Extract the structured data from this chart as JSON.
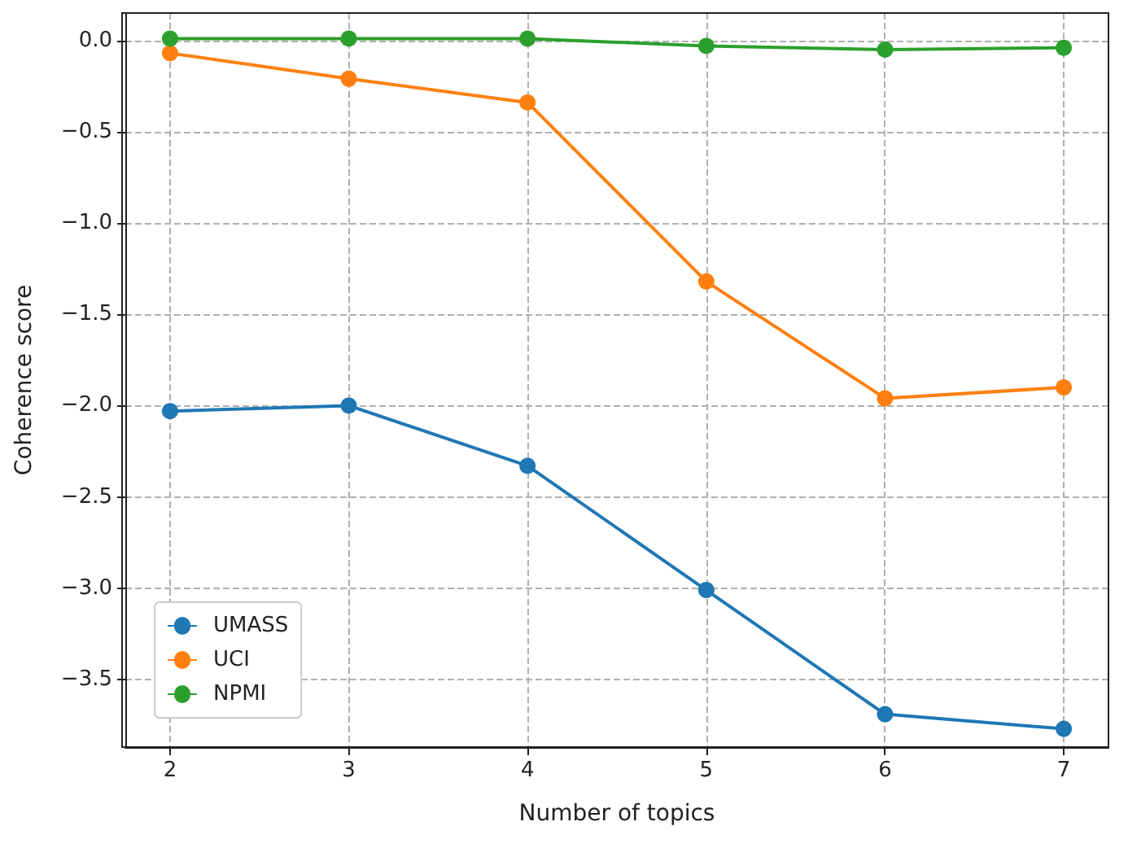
{
  "chart_data": {
    "type": "line",
    "xlabel": "Number of topics",
    "ylabel": "Coherence score",
    "x": [
      2,
      3,
      4,
      5,
      6,
      7
    ],
    "series": [
      {
        "name": "UMASS",
        "color": "#1f77b4",
        "values": [
          -2.03,
          -2.0,
          -2.33,
          -3.01,
          -3.69,
          -3.77
        ]
      },
      {
        "name": "UCI",
        "color": "#ff7f0e",
        "values": [
          -0.07,
          -0.21,
          -0.34,
          -1.32,
          -1.96,
          -1.9
        ]
      },
      {
        "name": "NPMI",
        "color": "#2ca02c",
        "values": [
          0.01,
          0.01,
          0.01,
          -0.03,
          -0.05,
          -0.04
        ]
      }
    ],
    "xlim": [
      1.75,
      7.25
    ],
    "xticks": [
      2,
      3,
      4,
      5,
      6,
      7
    ],
    "ylim": [
      -3.87,
      0.15
    ],
    "yticks": [
      {
        "value": -3.5,
        "label": "−3.5"
      },
      {
        "value": -3,
        "label": "−3.0"
      },
      {
        "value": -2.5,
        "label": "−2.5"
      },
      {
        "value": -2,
        "label": "−2.0"
      },
      {
        "value": -1.5,
        "label": "−1.5"
      },
      {
        "value": -1,
        "label": "−1.0"
      },
      {
        "value": -0.5,
        "label": "−0.5"
      },
      {
        "value": 0,
        "label": "0.0"
      }
    ],
    "grid": true,
    "legend": "bottom left",
    "marker": "circle",
    "line_style": "solid"
  }
}
